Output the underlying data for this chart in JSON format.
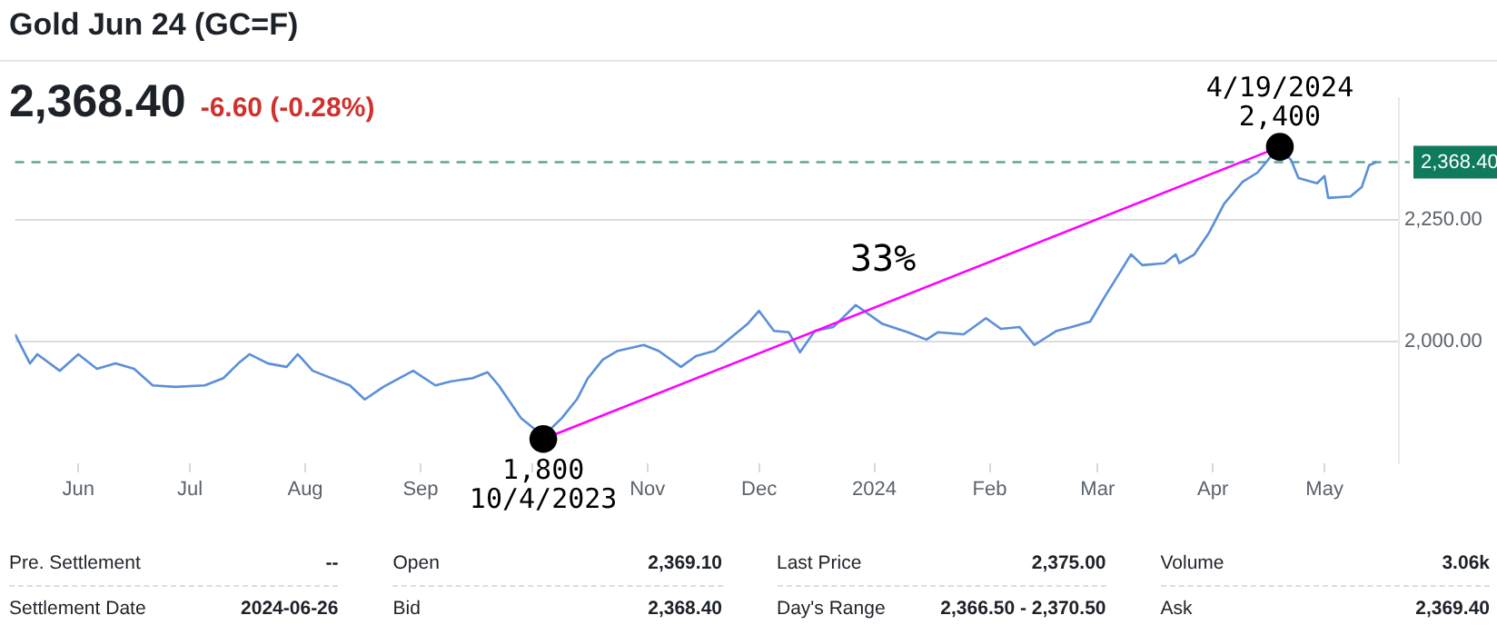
{
  "chart_data": {
    "type": "line",
    "title": "Gold Jun 24 (GC=F)",
    "subtitle": "2,368.40",
    "x": [
      "2023-05-15",
      "2023-05-19",
      "2023-05-21",
      "2023-05-27",
      "2023-06-01",
      "2023-06-06",
      "2023-06-11",
      "2023-06-16",
      "2023-06-21",
      "2023-06-27",
      "2023-07-05",
      "2023-07-10",
      "2023-07-14",
      "2023-07-17",
      "2023-07-22",
      "2023-07-27",
      "2023-07-30",
      "2023-08-03",
      "2023-08-13",
      "2023-08-17",
      "2023-08-22",
      "2023-08-30",
      "2023-09-05",
      "2023-09-09",
      "2023-09-15",
      "2023-09-19",
      "2023-09-22",
      "2023-09-28",
      "2023-10-04",
      "2023-10-09",
      "2023-10-13",
      "2023-10-16",
      "2023-10-20",
      "2023-10-24",
      "2023-10-31",
      "2023-11-04",
      "2023-11-10",
      "2023-11-14",
      "2023-11-19",
      "2023-11-21",
      "2023-11-28",
      "2023-12-01",
      "2023-12-05",
      "2023-12-09",
      "2023-12-12",
      "2023-12-16",
      "2023-12-21",
      "2023-12-27",
      "2024-01-03",
      "2024-01-10",
      "2024-01-15",
      "2024-01-18",
      "2024-01-25",
      "2024-01-31",
      "2024-02-04",
      "2024-02-09",
      "2024-02-13",
      "2024-02-19",
      "2024-02-23",
      "2024-02-28",
      "2024-03-03",
      "2024-03-07",
      "2024-03-10",
      "2024-03-13",
      "2024-03-19",
      "2024-03-22",
      "2024-03-23",
      "2024-03-27",
      "2024-03-31",
      "2024-04-04",
      "2024-04-09",
      "2024-04-13",
      "2024-04-17",
      "2024-04-19",
      "2024-04-22",
      "2024-04-24",
      "2024-04-29",
      "2024-05-01",
      "2024-05-02",
      "2024-05-08",
      "2024-05-11",
      "2024-05-13",
      "2024-05-15"
    ],
    "series": [
      {
        "color": "#5b8fd9",
        "marker": "none",
        "values": [
          2015,
          1955,
          1974,
          1940,
          1974,
          1944,
          1955,
          1944,
          1910,
          1907,
          1910,
          1925,
          1955,
          1974,
          1955,
          1948,
          1974,
          1940,
          1910,
          1881,
          1907,
          1940,
          1910,
          1918,
          1925,
          1937,
          1910,
          1843,
          1806,
          1843,
          1881,
          1925,
          1963,
          1981,
          1993,
          1981,
          1948,
          1970,
          1981,
          1993,
          2037,
          2063,
          2022,
          2019,
          1978,
          2022,
          2030,
          2075,
          2037,
          2019,
          2004,
          2019,
          2015,
          2048,
          2026,
          2030,
          1993,
          2022,
          2030,
          2041,
          2093,
          2142,
          2179,
          2157,
          2161,
          2179,
          2161,
          2179,
          2224,
          2283,
          2328,
          2347,
          2384,
          2399,
          2373,
          2336,
          2325,
          2340,
          2295,
          2298,
          2317,
          2362,
          2369
        ]
      },
      {
        "type": "line",
        "color": "#ff00ff",
        "marker": "circle",
        "x": [
          "2023-10-04",
          "2024-04-19"
        ],
        "values": [
          1800,
          2400
        ]
      }
    ],
    "xlim": [
      "2023-05-15",
      "2024-05-21"
    ],
    "xticks": [
      {
        "value": "2023-06-01",
        "label": "Jun"
      },
      {
        "value": "2023-07-01",
        "label": "Jul"
      },
      {
        "value": "2023-08-01",
        "label": "Aug"
      },
      {
        "value": "2023-09-01",
        "label": "Sep"
      },
      {
        "value": "2023-10-01",
        "label": null
      },
      {
        "value": "2023-11-01",
        "label": "Nov"
      },
      {
        "value": "2023-12-01",
        "label": "Dec"
      },
      {
        "value": "2024-01-01",
        "label": "2024"
      },
      {
        "value": "2024-02-01",
        "label": "Feb"
      },
      {
        "value": "2024-03-01",
        "label": "Mar"
      },
      {
        "value": "2024-04-01",
        "label": "Apr"
      },
      {
        "value": "2024-05-01",
        "label": "May"
      }
    ],
    "ylim": [
      1750,
      2500
    ],
    "yticks": [
      {
        "value": 2000,
        "label": "2,000.00"
      },
      {
        "value": 2250,
        "label": "2,250.00"
      }
    ],
    "grid": "y",
    "ref_lines": [
      {
        "axis": "y",
        "value": 2368.4,
        "label": "2,368.40",
        "color": "#5aa89a",
        "line_style": "dashed"
      }
    ],
    "annotations": [
      "-6.60 (-0.28%)",
      {
        "text": "1,800",
        "x": "2023-10-04",
        "y": 1800
      },
      {
        "text": "10/4/2023",
        "x": "2023-10-04",
        "y": 1800
      },
      {
        "text": "4/19/2024",
        "x": "2024-04-19",
        "y": 2400
      },
      {
        "text": "2,400",
        "x": "2024-04-19",
        "y": 2400
      },
      "33%",
      "Pre. Settlement",
      "--",
      "Open",
      "2,369.10",
      "Last Price",
      "2,375.00",
      "Volume",
      "3.06k",
      "Settlement Date",
      "2024-06-26",
      "Bid",
      "2,368.40",
      "Day's Range",
      "2,366.50 - 2,370.50",
      "Ask",
      "2,369.40"
    ]
  }
}
